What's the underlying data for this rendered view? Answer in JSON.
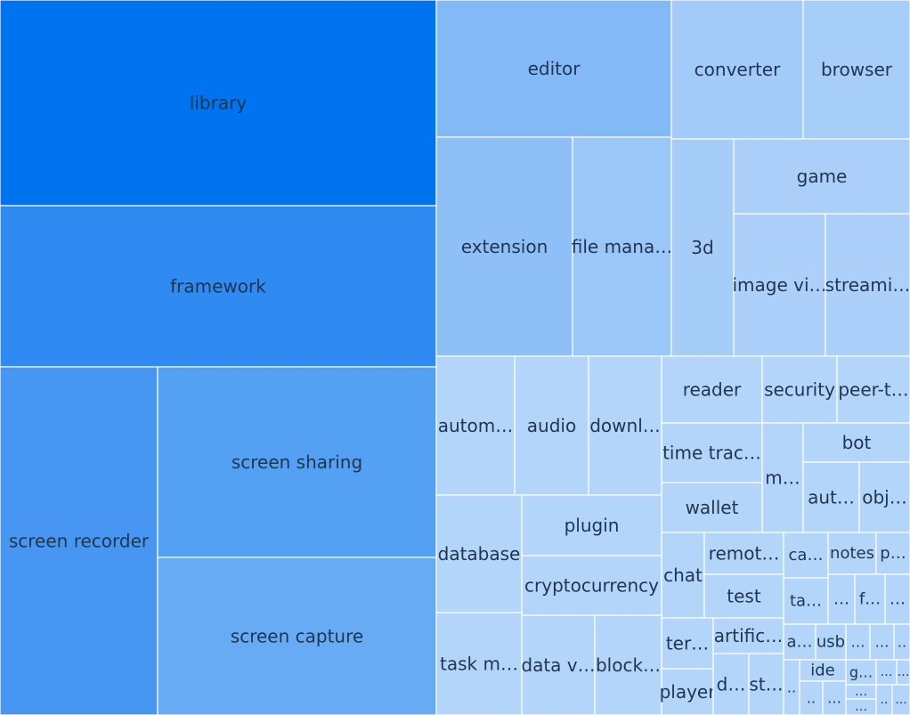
{
  "chart_data": {
    "type": "treemap",
    "title": "",
    "items": [
      {
        "label": "library",
        "color": "#0073f0"
      },
      {
        "label": "framework",
        "color": "#2f8af1"
      },
      {
        "label": "screen recorder",
        "color": "#4797f2"
      },
      {
        "label": "screen sharing",
        "color": "#54a0f3"
      },
      {
        "label": "screen capture",
        "color": "#67abf5"
      },
      {
        "label": "editor",
        "color": "#82b9f6"
      },
      {
        "label": "converter",
        "color": "#a3cbf9"
      },
      {
        "label": "browser",
        "color": "#a7cdf9"
      },
      {
        "label": "extension",
        "color": "#8ebff7"
      },
      {
        "label": "file mana…",
        "color": "#9bc6f8"
      },
      {
        "label": "3d",
        "color": "#a6ccf8"
      },
      {
        "label": "game",
        "color": "#abcff9"
      },
      {
        "label": "image vi…",
        "color": "#acd0f9"
      },
      {
        "label": "streami…",
        "color": "#acd0f9"
      },
      {
        "label": "autom…",
        "color": "#b3d5fa"
      },
      {
        "label": "audio",
        "color": "#b3d5fa"
      },
      {
        "label": "downl…",
        "color": "#b3d5fa"
      },
      {
        "label": "reader",
        "color": "#b3d5fa"
      },
      {
        "label": "security",
        "color": "#b3d5fa"
      },
      {
        "label": "peer-t…",
        "color": "#b3d5fa"
      },
      {
        "label": "time trac…",
        "color": "#b3d5fa"
      },
      {
        "label": "m…",
        "color": "#b3d5fa"
      },
      {
        "label": "bot",
        "color": "#b3d5fa"
      },
      {
        "label": "aut…",
        "color": "#b3d5fa"
      },
      {
        "label": "obj…",
        "color": "#b3d5fa"
      },
      {
        "label": "wallet",
        "color": "#b3d5fa"
      },
      {
        "label": "database",
        "color": "#b3d5fa"
      },
      {
        "label": "plugin",
        "color": "#b3d5fa"
      },
      {
        "label": "cryptocurrency",
        "color": "#b3d5fa"
      },
      {
        "label": "chat",
        "color": "#b3d5fa"
      },
      {
        "label": "remot…",
        "color": "#b3d5fa"
      },
      {
        "label": "ca…",
        "color": "#b3d5fa"
      },
      {
        "label": "notes",
        "color": "#b3d5fa"
      },
      {
        "label": "p…",
        "color": "#b3d5fa"
      },
      {
        "label": "test",
        "color": "#b3d5fa"
      },
      {
        "label": "ta…",
        "color": "#b3d5fa"
      },
      {
        "label": "…",
        "color": "#b3d5fa"
      },
      {
        "label": "f…",
        "color": "#b3d5fa"
      },
      {
        "label": "…",
        "color": "#b3d5fa"
      },
      {
        "label": "task m…",
        "color": "#b3d5fa"
      },
      {
        "label": "data v…",
        "color": "#b3d5fa"
      },
      {
        "label": "block…",
        "color": "#b3d5fa"
      },
      {
        "label": "ter…",
        "color": "#b3d5fa"
      },
      {
        "label": "artific…",
        "color": "#b3d5fa"
      },
      {
        "label": "a…",
        "color": "#b3d5fa"
      },
      {
        "label": "usb",
        "color": "#b3d5fa"
      },
      {
        "label": "…",
        "color": "#b3d5fa"
      },
      {
        "label": "…",
        "color": "#b3d5fa"
      },
      {
        "label": "..",
        "color": "#b3d5fa"
      },
      {
        "label": "player",
        "color": "#b3d5fa"
      },
      {
        "label": "d…",
        "color": "#b3d5fa"
      },
      {
        "label": "st…",
        "color": "#b3d5fa"
      },
      {
        "label": "..",
        "color": "#b3d5fa"
      },
      {
        "label": "ide",
        "color": "#b3d5fa"
      },
      {
        "label": "g…",
        "color": "#b3d5fa"
      },
      {
        "label": "…",
        "color": "#b3d5fa"
      },
      {
        "label": "…",
        "color": "#b3d5fa"
      },
      {
        "label": "..",
        "color": "#b3d5fa"
      },
      {
        "label": "…",
        "color": "#b3d5fa"
      },
      {
        "label": "…",
        "color": "#b3d5fa"
      },
      {
        "label": "…",
        "color": "#b3d5fa"
      },
      {
        "label": "..",
        "color": "#b3d5fa"
      },
      {
        "label": "...",
        "color": "#b3d5fa"
      }
    ]
  }
}
